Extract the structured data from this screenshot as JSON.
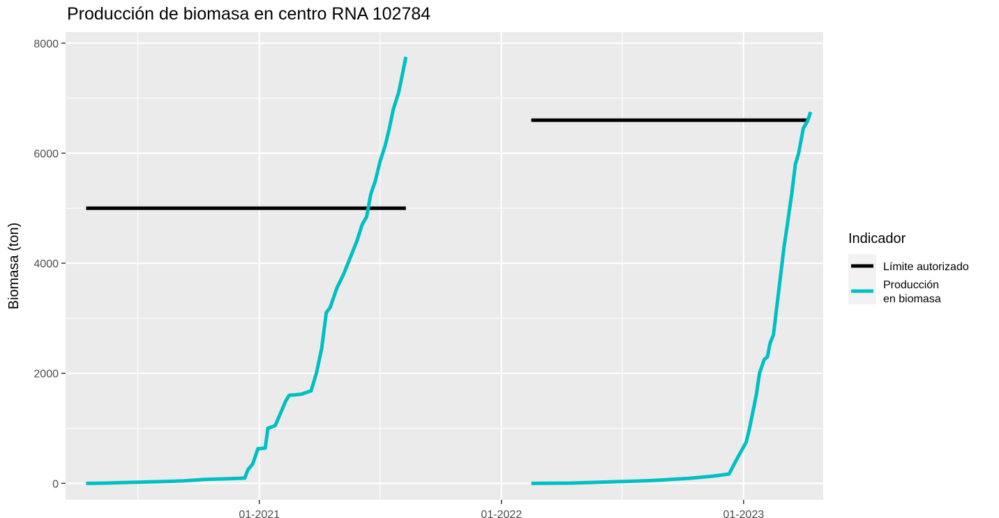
{
  "chart_data": {
    "type": "line",
    "title": "Producción de biomasa en centro RNA 102784",
    "xlabel": "",
    "ylabel": "Biomasa (ton)",
    "x_type": "date",
    "xlim": [
      "2020-03-15",
      "2023-05-01"
    ],
    "ylim": [
      -300,
      8200
    ],
    "y_ticks": [
      0,
      2000,
      4000,
      6000,
      8000
    ],
    "x_ticks": [
      {
        "date": "2021-01-01",
        "label": "01-2021"
      },
      {
        "date": "2022-01-01",
        "label": "01-2022"
      },
      {
        "date": "2023-01-01",
        "label": "01-2023"
      }
    ],
    "x_minor_ticks": [
      "2020-07-02",
      "2021-07-02",
      "2022-07-02"
    ],
    "y_minor_ticks": [
      1000,
      3000,
      5000,
      7000
    ],
    "grid": true,
    "legend": {
      "title": "Indicador",
      "position": "right",
      "entries": [
        {
          "label_lines": [
            "Límite autorizado"
          ],
          "color": "#000000"
        },
        {
          "label_lines": [
            "Producción",
            "en biomasa"
          ],
          "color": "#00bfc4"
        }
      ]
    },
    "series": [
      {
        "name": "Límite autorizado",
        "color": "#000000",
        "segments": [
          [
            [
              "2020-04-15",
              5000
            ],
            [
              "2021-08-10",
              5000
            ]
          ],
          [
            [
              "2022-02-15",
              6600
            ],
            [
              "2023-04-10",
              6600
            ]
          ]
        ]
      },
      {
        "name": "Producción en biomasa",
        "color": "#00bfc4",
        "segments": [
          [
            [
              "2020-04-15",
              0
            ],
            [
              "2020-05-15",
              5
            ],
            [
              "2020-06-10",
              15
            ],
            [
              "2020-07-15",
              25
            ],
            [
              "2020-08-15",
              35
            ],
            [
              "2020-09-10",
              45
            ],
            [
              "2020-10-10",
              70
            ],
            [
              "2020-11-15",
              85
            ],
            [
              "2020-12-10",
              95
            ],
            [
              "2020-12-15",
              250
            ],
            [
              "2020-12-22",
              350
            ],
            [
              "2020-12-30",
              630
            ],
            [
              "2021-01-10",
              640
            ],
            [
              "2021-01-14",
              1000
            ],
            [
              "2021-01-25",
              1050
            ],
            [
              "2021-02-10",
              1500
            ],
            [
              "2021-02-15",
              1600
            ],
            [
              "2021-03-05",
              1620
            ],
            [
              "2021-03-20",
              1680
            ],
            [
              "2021-03-28",
              2000
            ],
            [
              "2021-04-05",
              2450
            ],
            [
              "2021-04-12",
              3100
            ],
            [
              "2021-04-18",
              3200
            ],
            [
              "2021-04-28",
              3550
            ],
            [
              "2021-05-08",
              3800
            ],
            [
              "2021-05-18",
              4100
            ],
            [
              "2021-05-28",
              4400
            ],
            [
              "2021-06-05",
              4700
            ],
            [
              "2021-06-12",
              4850
            ],
            [
              "2021-06-18",
              5250
            ],
            [
              "2021-06-25",
              5500
            ],
            [
              "2021-07-02",
              5850
            ],
            [
              "2021-07-10",
              6150
            ],
            [
              "2021-07-16",
              6450
            ],
            [
              "2021-07-22",
              6800
            ],
            [
              "2021-07-30",
              7100
            ],
            [
              "2021-08-05",
              7450
            ],
            [
              "2021-08-10",
              7750
            ]
          ],
          [
            [
              "2022-02-15",
              0
            ],
            [
              "2022-04-15",
              5
            ],
            [
              "2022-06-10",
              25
            ],
            [
              "2022-08-15",
              50
            ],
            [
              "2022-10-10",
              90
            ],
            [
              "2022-11-15",
              130
            ],
            [
              "2022-12-10",
              170
            ],
            [
              "2022-12-20",
              400
            ],
            [
              "2023-01-05",
              750
            ],
            [
              "2023-01-10",
              1000
            ],
            [
              "2023-01-20",
              1600
            ],
            [
              "2023-01-25",
              2000
            ],
            [
              "2023-02-01",
              2250
            ],
            [
              "2023-02-06",
              2300
            ],
            [
              "2023-02-10",
              2550
            ],
            [
              "2023-02-15",
              2700
            ],
            [
              "2023-02-20",
              3200
            ],
            [
              "2023-02-25",
              3700
            ],
            [
              "2023-03-03",
              4300
            ],
            [
              "2023-03-08",
              4700
            ],
            [
              "2023-03-15",
              5300
            ],
            [
              "2023-03-20",
              5800
            ],
            [
              "2023-03-25",
              6000
            ],
            [
              "2023-04-01",
              6450
            ],
            [
              "2023-04-08",
              6600
            ],
            [
              "2023-04-12",
              6750
            ]
          ]
        ]
      }
    ]
  }
}
